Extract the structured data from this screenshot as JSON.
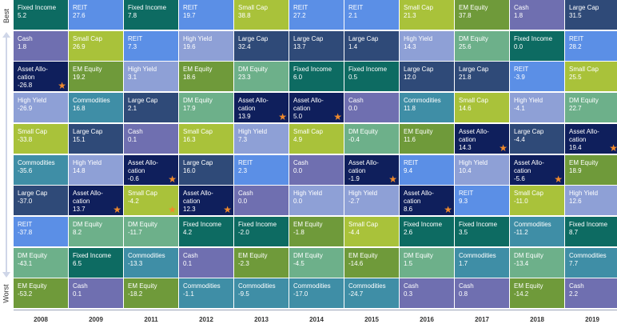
{
  "axis": {
    "best_label": "Best",
    "worst_label": "Worst"
  },
  "colors": {
    "Fixed Income": "#0d6b62",
    "REIT": "#5b8fe6",
    "Cash": "#6f6fb0",
    "Small Cap": "#a9c23a",
    "EM Equity": "#6f9a3a",
    "Large Cap": "#2f4a78",
    "DM Equity": "#6db08a",
    "High Yield": "#8ea0d6",
    "Commodities": "#3f8ea6",
    "Asset Allocation": "#0f1f5c",
    "star": "#f08a2c"
  },
  "chart_data": {
    "type": "table",
    "title": "",
    "years": [
      "2008",
      "2009",
      "2011",
      "2012",
      "2013",
      "2014",
      "2015",
      "2016",
      "2017",
      "2018",
      "2019"
    ],
    "columns": [
      {
        "year": "2008",
        "cells": [
          {
            "asset": "Fixed Income",
            "label": "Fixed Income",
            "value": "5.2"
          },
          {
            "asset": "Cash",
            "label": "Cash",
            "value": "1.8"
          },
          {
            "asset": "Asset Allocation",
            "label": "Asset Allo-\ncation",
            "value": "-26.8",
            "star": true
          },
          {
            "asset": "High Yield",
            "label": "High Yield",
            "value": "-26.9"
          },
          {
            "asset": "Small Cap",
            "label": "Small Cap",
            "value": "-33.8"
          },
          {
            "asset": "Commodities",
            "label": "Commodities",
            "value": "-35.6"
          },
          {
            "asset": "Large Cap",
            "label": "Large Cap",
            "value": "-37.0"
          },
          {
            "asset": "REIT",
            "label": "REIT",
            "value": "-37.8"
          },
          {
            "asset": "DM Equity",
            "label": "DM Equity",
            "value": "-43.1"
          },
          {
            "asset": "EM Equity",
            "label": "EM Equity",
            "value": "-53.2"
          }
        ]
      },
      {
        "year": "2009",
        "cells": [
          {
            "asset": "REIT",
            "label": "REIT",
            "value": "27.6"
          },
          {
            "asset": "Small Cap",
            "label": "Small Cap",
            "value": "26.9"
          },
          {
            "asset": "EM Equity",
            "label": "EM Equity",
            "value": "19.2"
          },
          {
            "asset": "Commodities",
            "label": "Commodities",
            "value": "16.8"
          },
          {
            "asset": "Large Cap",
            "label": "Large Cap",
            "value": "15.1"
          },
          {
            "asset": "High Yield",
            "label": "High Yield",
            "value": "14.8"
          },
          {
            "asset": "Asset Allocation",
            "label": "Asset Allo-\ncation",
            "value": "13.7",
            "star": true
          },
          {
            "asset": "DM Equity",
            "label": "DM Equity",
            "value": "8.2"
          },
          {
            "asset": "Fixed Income",
            "label": "Fixed Income",
            "value": "6.5"
          },
          {
            "asset": "Cash",
            "label": "Cash",
            "value": "0.1"
          }
        ]
      },
      {
        "year": "2011",
        "cells": [
          {
            "asset": "Fixed Income",
            "label": "Fixed Income",
            "value": "7.8"
          },
          {
            "asset": "REIT",
            "label": "REIT",
            "value": "7.3"
          },
          {
            "asset": "High Yield",
            "label": "High Yield",
            "value": "3.1"
          },
          {
            "asset": "Large Cap",
            "label": "Large Cap",
            "value": "2.1"
          },
          {
            "asset": "Cash",
            "label": "Cash",
            "value": "0.1"
          },
          {
            "asset": "Asset Allocation",
            "label": "Asset Allo-\ncation",
            "value": "-0.6",
            "star": true
          },
          {
            "asset": "Small Cap",
            "label": "Small Cap",
            "value": "-4.2",
            "star": true
          },
          {
            "asset": "DM Equity",
            "label": "DM Equity",
            "value": "-11.7"
          },
          {
            "asset": "Commodities",
            "label": "Commodities",
            "value": "-13.3"
          },
          {
            "asset": "EM Equity",
            "label": "EM Equity",
            "value": "-18.2"
          }
        ]
      },
      {
        "year": "2012",
        "cells": [
          {
            "asset": "REIT",
            "label": "REIT",
            "value": "19.7"
          },
          {
            "asset": "High Yield",
            "label": "High Yield",
            "value": "19.6"
          },
          {
            "asset": "EM Equity",
            "label": "EM Equity",
            "value": "18.6"
          },
          {
            "asset": "DM Equity",
            "label": "DM Equity",
            "value": "17.9"
          },
          {
            "asset": "Small Cap",
            "label": "Small Cap",
            "value": "16.3"
          },
          {
            "asset": "Large Cap",
            "label": "Large Cap",
            "value": "16.0"
          },
          {
            "asset": "Asset Allocation",
            "label": "Asset Allo-\ncation",
            "value": "12.3",
            "star": true
          },
          {
            "asset": "Fixed Income",
            "label": "Fixed Income",
            "value": "4.2"
          },
          {
            "asset": "Cash",
            "label": "Cash",
            "value": "0.1"
          },
          {
            "asset": "Commodities",
            "label": "Commodities",
            "value": "-1.1"
          }
        ]
      },
      {
        "year": "2013",
        "cells": [
          {
            "asset": "Small Cap",
            "label": "Small Cap",
            "value": "38.8"
          },
          {
            "asset": "Large Cap",
            "label": "Large Cap",
            "value": "32.4"
          },
          {
            "asset": "DM Equity",
            "label": "DM Equity",
            "value": "23.3"
          },
          {
            "asset": "Asset Allocation",
            "label": "Asset Allo-\ncation",
            "value": "13.9",
            "star": true
          },
          {
            "asset": "High Yield",
            "label": "High Yield",
            "value": "7.3"
          },
          {
            "asset": "REIT",
            "label": "REIT",
            "value": "2.3"
          },
          {
            "asset": "Cash",
            "label": "Cash",
            "value": "0.0"
          },
          {
            "asset": "Fixed Income",
            "label": "Fixed Income",
            "value": "-2.0"
          },
          {
            "asset": "EM Equity",
            "label": "EM Equity",
            "value": "-2.3"
          },
          {
            "asset": "Commodities",
            "label": "Commodities",
            "value": "-9.5"
          }
        ]
      },
      {
        "year": "2014",
        "cells": [
          {
            "asset": "REIT",
            "label": "REIT",
            "value": "27.2"
          },
          {
            "asset": "Large Cap",
            "label": "Large Cap",
            "value": "13.7"
          },
          {
            "asset": "Fixed Income",
            "label": "Fixed Income",
            "value": "6.0"
          },
          {
            "asset": "Asset Allocation",
            "label": "Asset Allo-\ncation",
            "value": "5.0",
            "star": true
          },
          {
            "asset": "Small Cap",
            "label": "Small Cap",
            "value": "4.9"
          },
          {
            "asset": "Cash",
            "label": "Cash",
            "value": "0.0"
          },
          {
            "asset": "High Yield",
            "label": "High Yield",
            "value": "0.0"
          },
          {
            "asset": "EM Equity",
            "label": "EM Equity",
            "value": "-1.8"
          },
          {
            "asset": "DM Equity",
            "label": "DM Equity",
            "value": "-4.5"
          },
          {
            "asset": "Commodities",
            "label": "Commodities",
            "value": "-17.0"
          }
        ]
      },
      {
        "year": "2015",
        "cells": [
          {
            "asset": "REIT",
            "label": "REIT",
            "value": "2.1"
          },
          {
            "asset": "Large Cap",
            "label": "Large Cap",
            "value": "1.4"
          },
          {
            "asset": "Fixed Income",
            "label": "Fixed Income",
            "value": "0.5"
          },
          {
            "asset": "Cash",
            "label": "Cash",
            "value": "0.0"
          },
          {
            "asset": "DM Equity",
            "label": "DM Equity",
            "value": "-0.4"
          },
          {
            "asset": "Asset Allocation",
            "label": "Asset Allo-\ncation",
            "value": "-1.9",
            "star": true
          },
          {
            "asset": "High Yield",
            "label": "High Yield",
            "value": "-2.7"
          },
          {
            "asset": "Small Cap",
            "label": "Small Cap",
            "value": "-4.4"
          },
          {
            "asset": "EM Equity",
            "label": "EM Equity",
            "value": "-14.6"
          },
          {
            "asset": "Commodities",
            "label": "Commodities",
            "value": "-24.7"
          }
        ]
      },
      {
        "year": "2016",
        "cells": [
          {
            "asset": "Small Cap",
            "label": "Small Cap",
            "value": "21.3"
          },
          {
            "asset": "High Yield",
            "label": "High Yield",
            "value": "14.3"
          },
          {
            "asset": "Large Cap",
            "label": "Large Cap",
            "value": "12.0"
          },
          {
            "asset": "Commodities",
            "label": "Commodities",
            "value": "11.8"
          },
          {
            "asset": "EM Equity",
            "label": "EM Equity",
            "value": "11.6"
          },
          {
            "asset": "REIT",
            "label": "REIT",
            "value": "9.4"
          },
          {
            "asset": "Asset Allocation",
            "label": "Asset Allo-\ncation",
            "value": "8.6",
            "star": true
          },
          {
            "asset": "Fixed Income",
            "label": "Fixed Income",
            "value": "2.6"
          },
          {
            "asset": "DM Equity",
            "label": "DM Equity",
            "value": "1.5"
          },
          {
            "asset": "Cash",
            "label": "Cash",
            "value": "0.3"
          }
        ]
      },
      {
        "year": "2017",
        "cells": [
          {
            "asset": "EM Equity",
            "label": "EM Equity",
            "value": "37.8"
          },
          {
            "asset": "DM Equity",
            "label": "DM Equity",
            "value": "25.6"
          },
          {
            "asset": "Large Cap",
            "label": "Large Cap",
            "value": "21.8"
          },
          {
            "asset": "Small Cap",
            "label": "Small Cap",
            "value": "14.6"
          },
          {
            "asset": "Asset Allocation",
            "label": "Asset Allo-\ncation",
            "value": "14.3",
            "star": true
          },
          {
            "asset": "High Yield",
            "label": "High Yield",
            "value": "10.4"
          },
          {
            "asset": "REIT",
            "label": "REIT",
            "value": "9.3"
          },
          {
            "asset": "Fixed Income",
            "label": "Fixed Income",
            "value": "3.5"
          },
          {
            "asset": "Commodities",
            "label": "Commodities",
            "value": "1.7"
          },
          {
            "asset": "Cash",
            "label": "Cash",
            "value": "0.8"
          }
        ]
      },
      {
        "year": "2018",
        "cells": [
          {
            "asset": "Cash",
            "label": "Cash",
            "value": "1.8"
          },
          {
            "asset": "Fixed Income",
            "label": "Fixed Income",
            "value": "0.0"
          },
          {
            "asset": "REIT",
            "label": "REIT",
            "value": "-3.9"
          },
          {
            "asset": "High Yield",
            "label": "High Yield",
            "value": "-4.1"
          },
          {
            "asset": "Large Cap",
            "label": "Large Cap",
            "value": "-4.4"
          },
          {
            "asset": "Asset Allocation",
            "label": "Asset Allo-\ncation",
            "value": "-5.6",
            "star": true
          },
          {
            "asset": "Small Cap",
            "label": "Small Cap",
            "value": "-11.0"
          },
          {
            "asset": "Commodities",
            "label": "Commodities",
            "value": "-11.2"
          },
          {
            "asset": "DM Equity",
            "label": "DM Equity",
            "value": "-13.4"
          },
          {
            "asset": "EM Equity",
            "label": "EM Equity",
            "value": "-14.2"
          }
        ]
      },
      {
        "year": "2019",
        "cells": [
          {
            "asset": "Large Cap",
            "label": "Large Cap",
            "value": "31.5"
          },
          {
            "asset": "REIT",
            "label": "REIT",
            "value": "28.2"
          },
          {
            "asset": "Small Cap",
            "label": "Small Cap",
            "value": "25.5"
          },
          {
            "asset": "DM Equity",
            "label": "DM Equity",
            "value": "22.7"
          },
          {
            "asset": "Asset Allocation",
            "label": "Asset Allo-\ncation",
            "value": "19.4",
            "star": true
          },
          {
            "asset": "EM Equity",
            "label": "EM Equity",
            "value": "18.9"
          },
          {
            "asset": "High Yield",
            "label": "High Yield",
            "value": "12.6"
          },
          {
            "asset": "Fixed Income",
            "label": "Fixed Income",
            "value": "8.7"
          },
          {
            "asset": "Commodities",
            "label": "Commodities",
            "value": "7.7"
          },
          {
            "asset": "Cash",
            "label": "Cash",
            "value": "2.2"
          }
        ]
      }
    ]
  }
}
